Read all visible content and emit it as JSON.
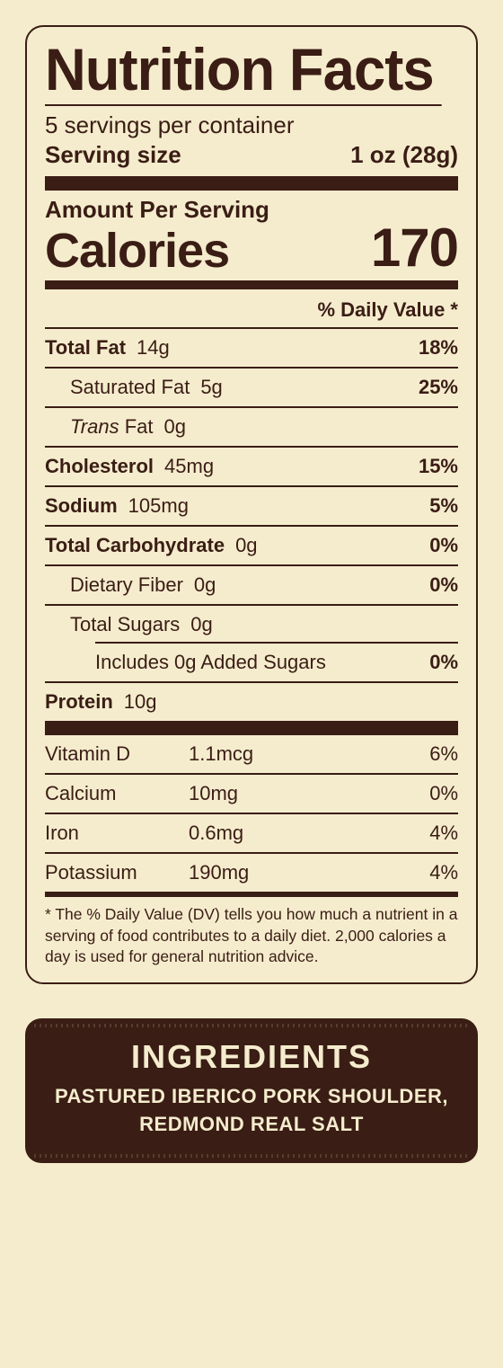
{
  "colors": {
    "bg": "#f5ecce",
    "fg": "#3a1d14"
  },
  "header": {
    "title": "Nutrition Facts",
    "servings_per_container": "5 servings per container",
    "serving_size_label": "Serving size",
    "serving_size_value": "1 oz (28g)"
  },
  "calories": {
    "amount_per_serving_label": "Amount Per Serving",
    "label": "Calories",
    "value": "170"
  },
  "dv_header": "% Daily Value *",
  "rows": {
    "total_fat": {
      "label": "Total Fat",
      "value": "14g",
      "pct": "18%"
    },
    "sat_fat": {
      "label": "Saturated Fat",
      "value": "5g",
      "pct": "25%"
    },
    "trans_fat": {
      "label_italic": "Trans",
      "label_rest": " Fat",
      "value": "0g"
    },
    "cholesterol": {
      "label": "Cholesterol",
      "value": "45mg",
      "pct": "15%"
    },
    "sodium": {
      "label": "Sodium",
      "value": "105mg",
      "pct": "5%"
    },
    "total_carb": {
      "label": "Total Carbohydrate",
      "value": "0g",
      "pct": "0%"
    },
    "fiber": {
      "label": "Dietary Fiber",
      "value": "0g",
      "pct": "0%"
    },
    "total_sugars": {
      "label": "Total Sugars",
      "value": "0g"
    },
    "added_sugars": {
      "label": "Includes 0g Added Sugars",
      "pct": "0%"
    },
    "protein": {
      "label": "Protein",
      "value": "10g"
    }
  },
  "vitamins": {
    "vitd": {
      "name": "Vitamin D",
      "amount": "1.1mcg",
      "pct": "6%"
    },
    "calc": {
      "name": "Calcium",
      "amount": "10mg",
      "pct": "0%"
    },
    "iron": {
      "name": "Iron",
      "amount": "0.6mg",
      "pct": "4%"
    },
    "pota": {
      "name": "Potassium",
      "amount": "190mg",
      "pct": "4%"
    }
  },
  "footnote": "* The % Daily Value (DV) tells you how much a nutrient in a serving of food contributes to a daily diet. 2,000 calories a day is used for general nutrition advice.",
  "ingredients": {
    "title": "INGREDIENTS",
    "line1": "PASTURED IBERICO PORK SHOULDER,",
    "line2": "REDMOND REAL SALT"
  }
}
